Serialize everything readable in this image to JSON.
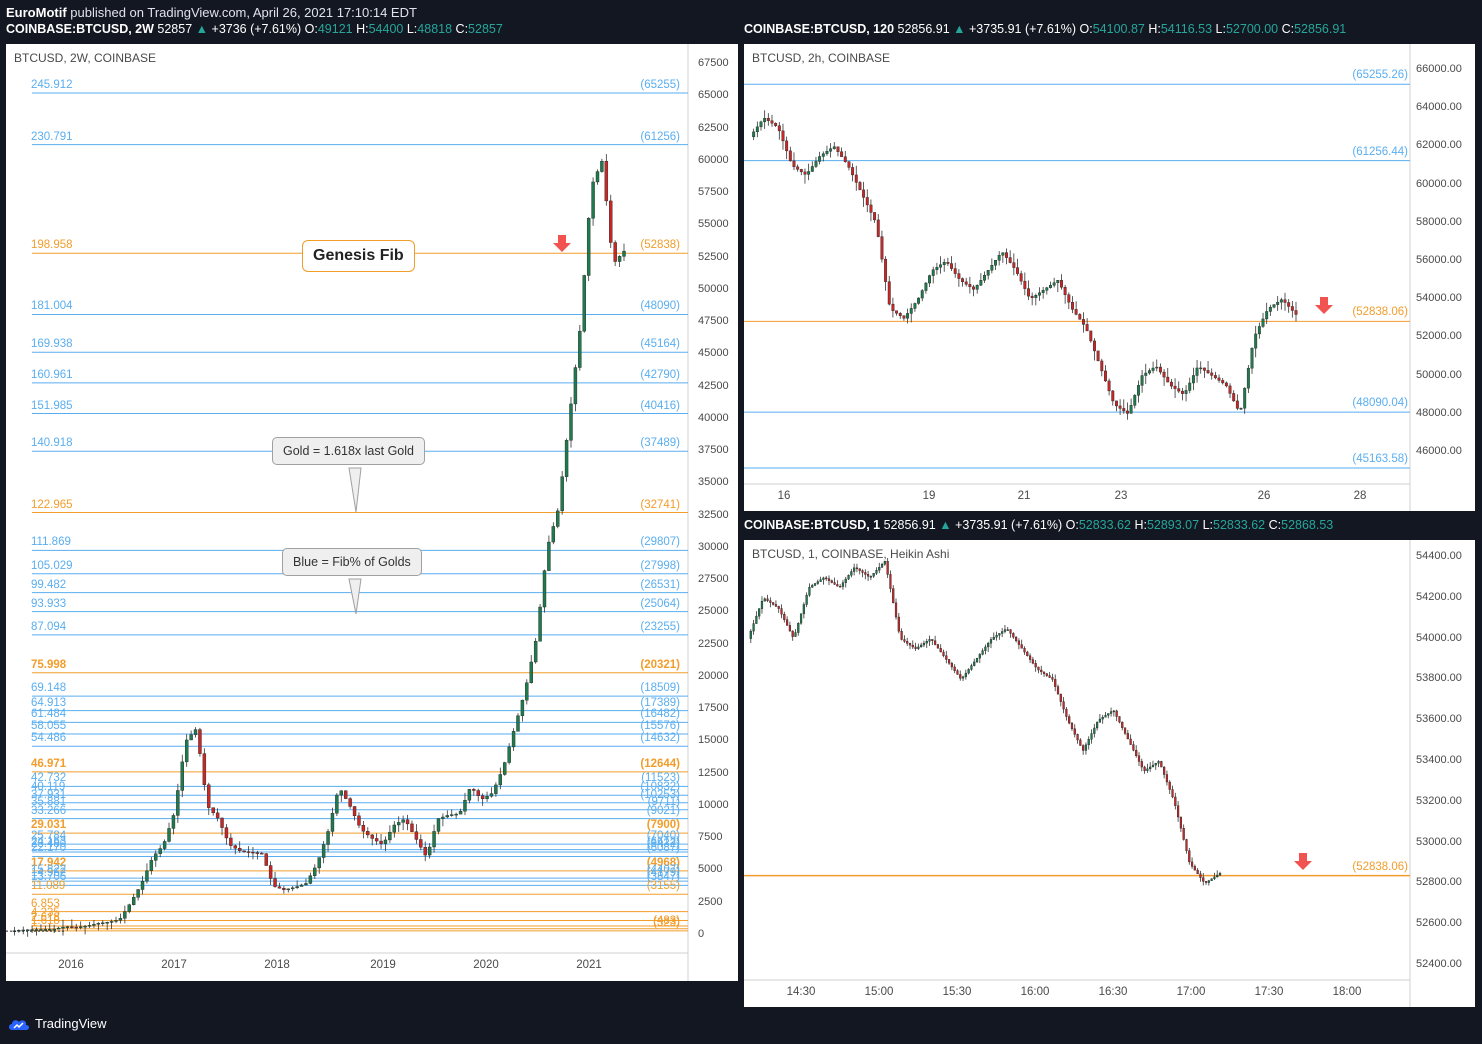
{
  "header": {
    "author": "EuroMotif",
    "published": "published on TradingView.com, April 26, 2021 17:10:14 EDT"
  },
  "colors": {
    "up": "#26a69a",
    "down": "#ef5350",
    "fib_blue": "#5aaef0",
    "fib_orange": "#f29d2b",
    "arrow": "#f05350"
  },
  "left": {
    "ticker": {
      "symbol": "COINBASE:BTCUSD, 2W",
      "last": "52857",
      "change_arrow": "▲",
      "change": "+3736 (+7.61%)",
      "o_label": "O:",
      "o": "49121",
      "h_label": "H:",
      "h": "54400",
      "l_label": "L:",
      "l": "48818",
      "c_label": "C:",
      "c": "52857"
    },
    "title": "BTCUSD, 2W, COINBASE",
    "genesis_label": "Genesis Fib",
    "bubble_gold": "Gold = 1.618x last Gold",
    "bubble_blue": "Blue = Fib% of Golds",
    "yaxis": [
      "67500",
      "65000",
      "62500",
      "60000",
      "57500",
      "55000",
      "52500",
      "50000",
      "47500",
      "45000",
      "42500",
      "40000",
      "37500",
      "35000",
      "32500",
      "30000",
      "27500",
      "25000",
      "22500",
      "20000",
      "17500",
      "15000",
      "12500",
      "10000",
      "7500",
      "5000",
      "2500",
      "0"
    ],
    "xaxis": [
      "2016",
      "2017",
      "2018",
      "2019",
      "2020",
      "2021"
    ],
    "fibs": [
      {
        "left": "245.912",
        "right": "(65255)",
        "color": "blue"
      },
      {
        "left": "230.791",
        "right": "(61256)",
        "color": "blue"
      },
      {
        "left": "198.958",
        "right": "(52838)",
        "color": "orange"
      },
      {
        "left": "181.004",
        "right": "(48090)",
        "color": "blue"
      },
      {
        "left": "169.938",
        "right": "(45164)",
        "color": "blue"
      },
      {
        "left": "160.961",
        "right": "(42790)",
        "color": "blue"
      },
      {
        "left": "151.985",
        "right": "(40416)",
        "color": "blue"
      },
      {
        "left": "140.918",
        "right": "(37489)",
        "color": "blue"
      },
      {
        "left": "122.965",
        "right": "(32741)",
        "color": "orange"
      },
      {
        "left": "111.869",
        "right": "(29807)",
        "color": "blue"
      },
      {
        "left": "105.029",
        "right": "(27998)",
        "color": "blue"
      },
      {
        "left": "99.482",
        "right": "(26531)",
        "color": "blue"
      },
      {
        "left": "93.933",
        "right": "(25064)",
        "color": "blue"
      },
      {
        "left": "87.094",
        "right": "(23255)",
        "color": "blue"
      },
      {
        "left": "75.998",
        "right": "(20321)",
        "color": "orange"
      },
      {
        "left": "69.148",
        "right": "(18509)",
        "color": "blue"
      },
      {
        "left": "64.913",
        "right": "(17389)",
        "color": "blue"
      },
      {
        "left": "61.484",
        "right": "(16482)",
        "color": "blue"
      },
      {
        "left": "58.055",
        "right": "(15576)",
        "color": "blue"
      },
      {
        "left": "54.486",
        "right": "(14632)",
        "color": "blue"
      },
      {
        "left": "46.971",
        "right": "(12644)",
        "color": "orange"
      },
      {
        "left": "42.732",
        "right": "(11523)",
        "color": "blue"
      },
      {
        "left": "40.119",
        "right": "(10832)",
        "color": "blue"
      },
      {
        "left": "37.931",
        "right": "(10253)",
        "color": "blue"
      },
      {
        "left": "35.881",
        "right": "(9711)",
        "color": "blue"
      },
      {
        "left": "33.266",
        "right": "(9021)",
        "color": "blue"
      },
      {
        "left": "29.031",
        "right": "(7900)",
        "color": "orange"
      },
      {
        "left": "25.784",
        "right": "(7040)",
        "color": "blue"
      },
      {
        "left": "24.163",
        "right": "(6612)",
        "color": "blue"
      },
      {
        "left": "23.480",
        "right": "(6432)",
        "color": "blue"
      },
      {
        "left": "22.170",
        "right": "(6087)",
        "color": "blue"
      },
      {
        "left": "17.942",
        "right": "(4968)",
        "color": "orange"
      },
      {
        "left": "15.822",
        "right": "(4407)",
        "color": "blue"
      },
      {
        "left": "14.962",
        "right": "(4179)",
        "color": "blue"
      },
      {
        "left": "13.706",
        "right": "(3847)",
        "color": "blue"
      },
      {
        "left": "11.089",
        "right": "(3155)",
        "color": "orange"
      },
      {
        "left": "6.853",
        "right": "",
        "color": "orange"
      },
      {
        "left": "4.235",
        "right": "",
        "color": "orange"
      },
      {
        "left": "2.618",
        "right": "",
        "color": "orange"
      },
      {
        "left": "1.618",
        "right": "(483)",
        "color": "orange"
      },
      {
        "left": "1",
        "right": "(323)",
        "color": "orange"
      }
    ]
  },
  "right_top": {
    "ticker": {
      "symbol": "COINBASE:BTCUSD, 120",
      "last": "52856.91",
      "change_arrow": "▲",
      "change": "+3735.91 (+7.61%)",
      "o_label": "O:",
      "o": "54100.87",
      "h_label": "H:",
      "h": "54116.53",
      "l_label": "L:",
      "l": "52700.00",
      "c_label": "C:",
      "c": "52856.91"
    },
    "title": "BTCUSD, 2h, COINBASE",
    "yaxis": [
      "66000.00",
      "64000.00",
      "62000.00",
      "60000.00",
      "58000.00",
      "56000.00",
      "54000.00",
      "52000.00",
      "50000.00",
      "48000.00",
      "46000.00"
    ],
    "xaxis": [
      "16",
      "19",
      "21",
      "23",
      "26",
      "28"
    ],
    "fibs": [
      {
        "right": "(65255.26)",
        "color": "blue"
      },
      {
        "right": "(61256.44)",
        "color": "blue"
      },
      {
        "right": "(52838.06)",
        "color": "orange"
      },
      {
        "right": "(48090.04)",
        "color": "blue"
      },
      {
        "right": "(45163.58)",
        "color": "blue"
      }
    ]
  },
  "right_bottom": {
    "ticker": {
      "symbol": "COINBASE:BTCUSD, 1",
      "last": "52856.91",
      "change_arrow": "▲",
      "change": "+3735.91 (+7.61%)",
      "o_label": "O:",
      "o": "52833.62",
      "h_label": "H:",
      "h": "52893.07",
      "l_label": "L:",
      "l": "52833.62",
      "c_label": "C:",
      "c": "52868.53"
    },
    "title": "BTCUSD, 1, COINBASE, Heikin Ashi",
    "yaxis": [
      "54400.00",
      "54200.00",
      "54000.00",
      "53800.00",
      "53600.00",
      "53400.00",
      "53200.00",
      "53000.00",
      "52800.00",
      "52600.00",
      "52400.00"
    ],
    "xaxis": [
      "14:30",
      "15:00",
      "15:30",
      "16:00",
      "16:30",
      "17:00",
      "17:30",
      "18:00"
    ],
    "fibs": [
      {
        "right": "(52838.06)",
        "color": "orange"
      }
    ]
  },
  "footer": {
    "brand": "TradingView"
  }
}
